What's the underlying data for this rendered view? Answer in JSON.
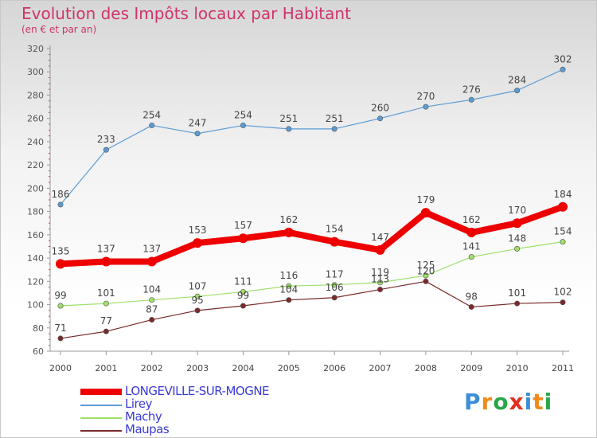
{
  "header": {
    "title": "Evolution des Impôts locaux par Habitant",
    "subtitle": "(en € et par an)"
  },
  "logo": {
    "text": "Proxiti",
    "letter_colors": [
      "#3b8fd8",
      "#f08a1c",
      "#2aa64a",
      "#e0301e",
      "#3b8fd8",
      "#f08a1c",
      "#2aa64a"
    ]
  },
  "chart_data": {
    "type": "line",
    "x": [
      "2000",
      "2001",
      "2002",
      "2003",
      "2004",
      "2005",
      "2006",
      "2007",
      "2008",
      "2009",
      "2010",
      "2011"
    ],
    "ylim": [
      60,
      320
    ],
    "ytick_step": 20,
    "grid": false,
    "legend_placement": "bottom-left",
    "series": [
      {
        "name": "LONGEVILLE-SUR-MOGNE",
        "color": "#ee0000",
        "values": [
          135,
          137,
          137,
          153,
          157,
          162,
          154,
          147,
          179,
          162,
          170,
          184
        ],
        "labels": [
          "135",
          "137",
          "137",
          "153",
          "157",
          "162",
          "154",
          "147",
          "179",
          "162",
          "170",
          "184"
        ]
      },
      {
        "name": "Lirey",
        "color": "#5b9bd5",
        "values": [
          186,
          233,
          254,
          247,
          254,
          251,
          251,
          260,
          270,
          276,
          284,
          302
        ],
        "labels": [
          "186",
          "233",
          "254",
          "247",
          "254",
          "251",
          "251",
          "260",
          "270",
          "276",
          "284",
          "302"
        ]
      },
      {
        "name": "Machy",
        "color": "#9ee06a",
        "values": [
          99,
          101,
          104,
          107,
          111,
          116,
          117,
          119,
          125,
          141,
          148,
          154
        ],
        "labels": [
          "99",
          "101",
          "104",
          "107",
          "111",
          "116",
          "117",
          "119",
          "125",
          "141",
          "148",
          "154"
        ]
      },
      {
        "name": "Maupas",
        "color": "#7a2a2a",
        "values": [
          71,
          77,
          87,
          95,
          99,
          104,
          106,
          113,
          120,
          98,
          101,
          102
        ],
        "labels": [
          "71",
          "77",
          "87",
          "95",
          "99",
          "104",
          "106",
          "113",
          "120",
          "98",
          "101",
          "102"
        ]
      }
    ]
  }
}
